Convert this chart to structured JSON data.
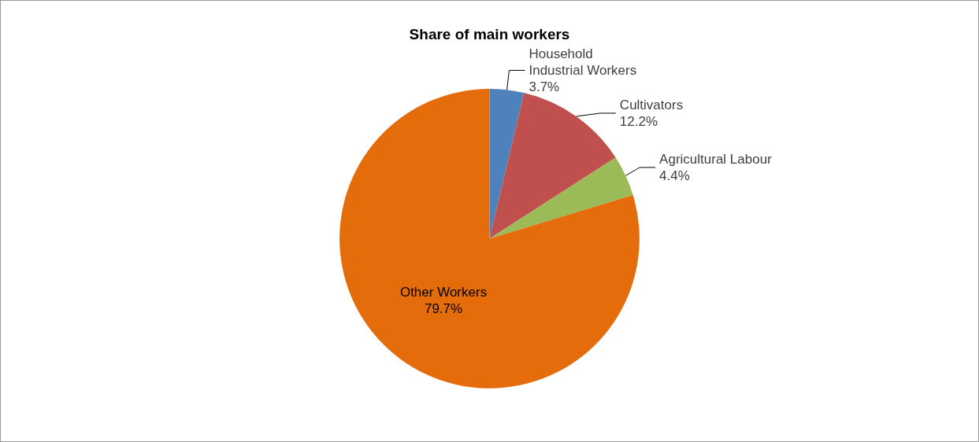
{
  "chart_data": {
    "type": "pie",
    "title": "Share of main workers",
    "categories": [
      "Household\nIndustrial Workers",
      "Cultivators",
      "Agricultural Labour",
      "Other Workers"
    ],
    "values": [
      3.7,
      12.2,
      4.4,
      79.7
    ],
    "value_labels": [
      "3.7%",
      "12.2%",
      "4.4%",
      "79.7%"
    ],
    "colors": [
      "#4f81bd",
      "#c0504d",
      "#9bbb59",
      "#e46c0a"
    ],
    "legend": false
  }
}
